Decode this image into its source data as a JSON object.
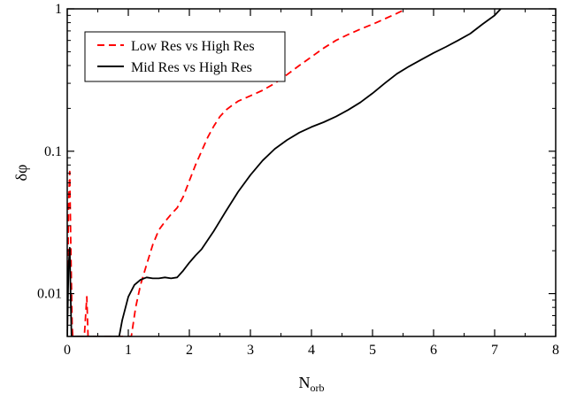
{
  "chart_data": {
    "type": "line",
    "title": "",
    "xlabel": "N",
    "xlabel_sub": "orb",
    "ylabel": "δφ",
    "xlim": [
      0,
      8
    ],
    "ylim": [
      0.005,
      1
    ],
    "yscale": "log",
    "grid": false,
    "legend_position": "top-left",
    "x_ticks": [
      0,
      1,
      2,
      3,
      4,
      5,
      6,
      7,
      8
    ],
    "x_tick_labels": [
      "0",
      "1",
      "2",
      "3",
      "4",
      "5",
      "6",
      "7",
      "8"
    ],
    "y_ticks": [
      0.01,
      0.1,
      1
    ],
    "y_tick_labels": [
      "0.01",
      "0.1",
      "1"
    ],
    "series": [
      {
        "name": "Low Res vs High Res",
        "color": "#ff0000",
        "dash": "dashed",
        "points": [
          [
            0.0,
            0.005
          ],
          [
            0.02,
            0.04
          ],
          [
            0.04,
            0.072
          ],
          [
            0.06,
            0.02
          ],
          [
            0.08,
            0.006
          ],
          [
            0.09,
            0.005
          ],
          [
            0.28,
            0.005
          ],
          [
            0.32,
            0.0095
          ],
          [
            0.34,
            0.005
          ],
          [
            1.05,
            0.005
          ],
          [
            1.12,
            0.008
          ],
          [
            1.2,
            0.0115
          ],
          [
            1.3,
            0.016
          ],
          [
            1.4,
            0.022
          ],
          [
            1.5,
            0.028
          ],
          [
            1.6,
            0.032
          ],
          [
            1.7,
            0.036
          ],
          [
            1.8,
            0.04
          ],
          [
            1.9,
            0.048
          ],
          [
            2.0,
            0.062
          ],
          [
            2.1,
            0.08
          ],
          [
            2.2,
            0.1
          ],
          [
            2.3,
            0.125
          ],
          [
            2.4,
            0.15
          ],
          [
            2.5,
            0.175
          ],
          [
            2.6,
            0.195
          ],
          [
            2.7,
            0.21
          ],
          [
            2.8,
            0.225
          ],
          [
            3.0,
            0.245
          ],
          [
            3.2,
            0.268
          ],
          [
            3.4,
            0.3
          ],
          [
            3.6,
            0.345
          ],
          [
            3.8,
            0.4
          ],
          [
            4.0,
            0.46
          ],
          [
            4.2,
            0.53
          ],
          [
            4.4,
            0.6
          ],
          [
            4.6,
            0.66
          ],
          [
            4.8,
            0.72
          ],
          [
            5.0,
            0.78
          ],
          [
            5.2,
            0.85
          ],
          [
            5.4,
            0.93
          ],
          [
            5.55,
            1.0
          ]
        ]
      },
      {
        "name": "Mid Res vs High Res",
        "color": "#000000",
        "dash": "solid",
        "points": [
          [
            0.0,
            0.005
          ],
          [
            0.02,
            0.015
          ],
          [
            0.04,
            0.021
          ],
          [
            0.06,
            0.008
          ],
          [
            0.07,
            0.005
          ],
          [
            0.85,
            0.005
          ],
          [
            0.9,
            0.0065
          ],
          [
            1.0,
            0.0095
          ],
          [
            1.1,
            0.0115
          ],
          [
            1.2,
            0.0125
          ],
          [
            1.3,
            0.013
          ],
          [
            1.4,
            0.0128
          ],
          [
            1.5,
            0.0128
          ],
          [
            1.6,
            0.013
          ],
          [
            1.7,
            0.0128
          ],
          [
            1.8,
            0.013
          ],
          [
            1.9,
            0.0145
          ],
          [
            2.0,
            0.0165
          ],
          [
            2.1,
            0.0185
          ],
          [
            2.2,
            0.0205
          ],
          [
            2.4,
            0.0275
          ],
          [
            2.6,
            0.038
          ],
          [
            2.8,
            0.052
          ],
          [
            3.0,
            0.068
          ],
          [
            3.2,
            0.086
          ],
          [
            3.4,
            0.104
          ],
          [
            3.6,
            0.12
          ],
          [
            3.8,
            0.135
          ],
          [
            4.0,
            0.148
          ],
          [
            4.2,
            0.16
          ],
          [
            4.4,
            0.175
          ],
          [
            4.6,
            0.195
          ],
          [
            4.8,
            0.22
          ],
          [
            5.0,
            0.255
          ],
          [
            5.2,
            0.3
          ],
          [
            5.4,
            0.35
          ],
          [
            5.6,
            0.395
          ],
          [
            5.8,
            0.44
          ],
          [
            6.0,
            0.49
          ],
          [
            6.2,
            0.54
          ],
          [
            6.4,
            0.6
          ],
          [
            6.6,
            0.67
          ],
          [
            6.8,
            0.78
          ],
          [
            7.0,
            0.9
          ],
          [
            7.1,
            1.0
          ]
        ]
      }
    ]
  }
}
